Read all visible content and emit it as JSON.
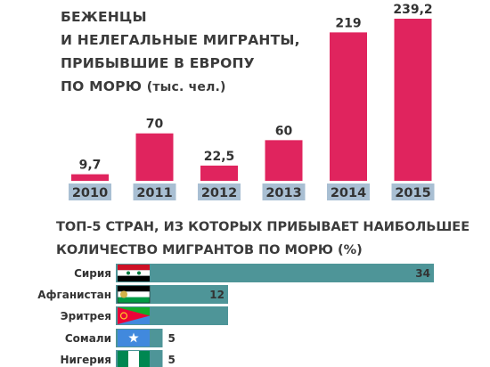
{
  "title_lines": [
    "БЕЖЕНЦЫ",
    "И НЕЛЕГАЛЬНЫЕ МИГРАНТЫ,",
    "ПРИБЫВШИЕ В ЕВРОПУ"
  ],
  "title_last": "ПО МОРЮ",
  "title_unit": "(тыс. чел.)",
  "section_title_lines": [
    "ТОП-5 СТРАН, ИЗ КОТОРЫХ ПРИБЫВАЕТ НАИБОЛЬШЕЕ",
    "КОЛИЧЕСТВО МИГРАНТОВ ПО МОРЮ (%)"
  ],
  "chart_data": [
    {
      "type": "bar",
      "categories": [
        "2010",
        "2011",
        "2012",
        "2013",
        "2014",
        "2015"
      ],
      "values": [
        9.7,
        70,
        22.5,
        60,
        219,
        239.2
      ],
      "value_labels": [
        "9,7",
        "70",
        "22,5",
        "60",
        "219",
        "239,2"
      ],
      "title": "БЕЖЕНЦЫ И НЕЛЕГАЛЬНЫЕ МИГРАНТЫ, ПРИБЫВШИЕ В ЕВРОПУ ПО МОРЮ (тыс. чел.)",
      "bar_color": "#e0245e",
      "label_bg_color": "#a9bfd3",
      "ylim": [
        0,
        239.2
      ]
    },
    {
      "type": "bar",
      "orientation": "horizontal",
      "categories": [
        "Сирия",
        "Афганистан",
        "Эритрея",
        "Сомали",
        "Нигерия"
      ],
      "values": [
        34,
        12,
        12,
        5,
        5
      ],
      "value_labels": [
        "34",
        "12",
        "",
        "5",
        "5"
      ],
      "flags": [
        "syria-flag-icon",
        "afghanistan-flag-icon",
        "eritrea-flag-icon",
        "somalia-flag-icon",
        "nigeria-flag-icon"
      ],
      "title": "ТОП-5 СТРАН, ИЗ КОТОРЫХ ПРИБЫВАЕТ НАИБОЛЬШЕЕ КОЛИЧЕСТВО МИГРАНТОВ ПО МОРЮ (%)",
      "bar_color": "#4e9598",
      "xlim": [
        0,
        34
      ]
    }
  ]
}
